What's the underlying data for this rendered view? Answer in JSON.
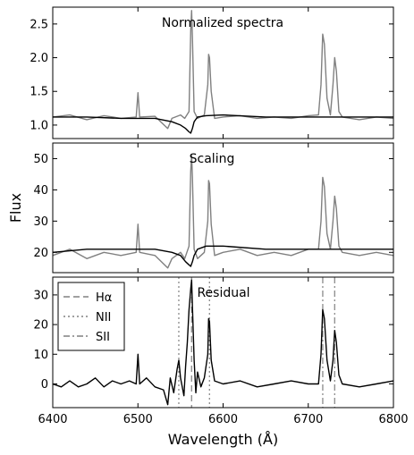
{
  "chart_data": [
    {
      "type": "line",
      "title": "Normalized spectra",
      "ylim": [
        0.8,
        2.75
      ],
      "xlim": [
        6400,
        6800
      ],
      "yticks": [
        "1.0",
        "1.5",
        "2.0",
        "2.5"
      ],
      "grid": false,
      "series": [
        {
          "color": "#808080",
          "x": [
            6400,
            6420,
            6440,
            6460,
            6480,
            6498,
            6500,
            6502,
            6520,
            6535,
            6540,
            6550,
            6555,
            6560,
            6562,
            6563,
            6564,
            6566,
            6570,
            6578,
            6582,
            6583,
            6584,
            6586,
            6590,
            6600,
            6620,
            6640,
            6660,
            6680,
            6700,
            6712,
            6715,
            6717,
            6719,
            6722,
            6726,
            6729,
            6731,
            6733,
            6736,
            6740,
            6760,
            6780,
            6800
          ],
          "y": [
            1.12,
            1.15,
            1.08,
            1.14,
            1.1,
            1.12,
            1.48,
            1.12,
            1.13,
            0.95,
            1.1,
            1.15,
            1.1,
            1.2,
            2.4,
            2.7,
            2.3,
            1.2,
            1.1,
            1.15,
            1.6,
            2.05,
            2.0,
            1.5,
            1.1,
            1.12,
            1.14,
            1.1,
            1.12,
            1.1,
            1.14,
            1.15,
            1.6,
            2.35,
            2.2,
            1.4,
            1.15,
            1.6,
            2.0,
            1.8,
            1.2,
            1.12,
            1.08,
            1.12,
            1.1
          ]
        },
        {
          "color": "#000000",
          "x": [
            6400,
            6440,
            6480,
            6520,
            6540,
            6550,
            6556,
            6560,
            6562,
            6564,
            6566,
            6570,
            6580,
            6600,
            6650,
            6700,
            6750,
            6800
          ],
          "y": [
            1.12,
            1.12,
            1.1,
            1.1,
            1.05,
            1.0,
            0.95,
            0.9,
            0.88,
            0.95,
            1.05,
            1.12,
            1.14,
            1.15,
            1.12,
            1.12,
            1.12,
            1.12
          ]
        }
      ]
    },
    {
      "type": "line",
      "title": "Scaling",
      "ylabel": "Flux",
      "ylim": [
        13.5,
        55
      ],
      "xlim": [
        6400,
        6800
      ],
      "yticks": [
        "20",
        "30",
        "40",
        "50"
      ],
      "grid": false,
      "series": [
        {
          "color": "#808080",
          "x": [
            6400,
            6420,
            6440,
            6460,
            6480,
            6498,
            6500,
            6502,
            6520,
            6535,
            6540,
            6550,
            6555,
            6560,
            6562,
            6563,
            6564,
            6566,
            6570,
            6578,
            6582,
            6583,
            6584,
            6586,
            6590,
            6600,
            6620,
            6640,
            6660,
            6680,
            6700,
            6712,
            6715,
            6717,
            6719,
            6722,
            6726,
            6729,
            6731,
            6733,
            6736,
            6740,
            6760,
            6780,
            6800
          ],
          "y": [
            19,
            21,
            18,
            20,
            19,
            20,
            29,
            20,
            19,
            15,
            18,
            20,
            18,
            22,
            46,
            51,
            44,
            21,
            18,
            20,
            30,
            43,
            42,
            29,
            19,
            20,
            21,
            19,
            20,
            19,
            21,
            21,
            30,
            44,
            41,
            26,
            21,
            30,
            38,
            34,
            22,
            20,
            19,
            20,
            19
          ]
        },
        {
          "color": "#000000",
          "x": [
            6400,
            6440,
            6480,
            6520,
            6540,
            6550,
            6556,
            6560,
            6562,
            6564,
            6566,
            6570,
            6580,
            6600,
            6650,
            6700,
            6750,
            6800
          ],
          "y": [
            20,
            21,
            21,
            21,
            20,
            19,
            17,
            16,
            15.5,
            17,
            19,
            21,
            22,
            22,
            21,
            21,
            21,
            21
          ]
        }
      ]
    },
    {
      "type": "line",
      "title": "Residual",
      "ylim": [
        -8,
        36
      ],
      "xlim": [
        6400,
        6800
      ],
      "yticks": [
        "0",
        "10",
        "20",
        "30"
      ],
      "xticks": [
        "6400",
        "6500",
        "6600",
        "6700",
        "6800"
      ],
      "xlabel": "Wavelength (Å)",
      "grid": false,
      "legend": {
        "position": "top-left",
        "entries": [
          {
            "label": "Hα",
            "style": "dashed"
          },
          {
            "label": "NII",
            "style": "dotted"
          },
          {
            "label": "SII",
            "style": "dashdot"
          }
        ]
      },
      "vlines": [
        {
          "x": 6548,
          "style": "dotted"
        },
        {
          "x": 6563,
          "style": "dashed"
        },
        {
          "x": 6584,
          "style": "dotted"
        },
        {
          "x": 6717,
          "style": "dashdot"
        },
        {
          "x": 6731,
          "style": "dashdot"
        }
      ],
      "series": [
        {
          "color": "#000000",
          "x": [
            6400,
            6410,
            6420,
            6430,
            6440,
            6450,
            6460,
            6470,
            6480,
            6490,
            6498,
            6500,
            6502,
            6510,
            6520,
            6530,
            6535,
            6538,
            6542,
            6546,
            6548,
            6550,
            6554,
            6556,
            6558,
            6560,
            6562,
            6563,
            6564,
            6566,
            6568,
            6570,
            6574,
            6578,
            6582,
            6583,
            6584,
            6586,
            6590,
            6600,
            6620,
            6640,
            6660,
            6680,
            6700,
            6712,
            6715,
            6717,
            6719,
            6722,
            6726,
            6729,
            6731,
            6733,
            6736,
            6740,
            6760,
            6780,
            6800
          ],
          "y": [
            0,
            -1,
            1,
            -1,
            0,
            2,
            -1,
            1,
            0,
            1,
            0,
            10,
            0,
            2,
            -1,
            -2,
            -7,
            2,
            -3,
            5,
            8,
            2,
            -4,
            6,
            14,
            25,
            32,
            35,
            26,
            8,
            -3,
            4,
            -1,
            2,
            10,
            22,
            21,
            8,
            1,
            0,
            1,
            -1,
            0,
            1,
            0,
            0,
            10,
            25,
            22,
            8,
            1,
            8,
            18,
            14,
            3,
            0,
            -1,
            0,
            1
          ]
        }
      ]
    }
  ]
}
